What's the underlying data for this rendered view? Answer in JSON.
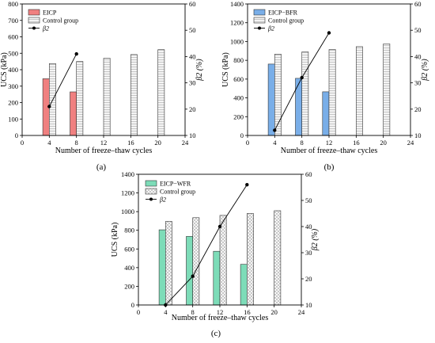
{
  "chart_data": [
    {
      "type": "bar",
      "panel_label": "(a)",
      "xlabel": "Number of freeze–thaw cycles",
      "ylabel": "UCS (kPa)",
      "y2label": "β2 (%)",
      "xlim": [
        0,
        24
      ],
      "ylim": [
        0,
        800
      ],
      "y2lim": [
        10,
        60
      ],
      "xticks": [
        0,
        4,
        8,
        12,
        16,
        20,
        24
      ],
      "yticks": [
        0,
        100,
        200,
        300,
        400,
        500,
        600,
        700,
        800
      ],
      "y2ticks": [
        10,
        20,
        30,
        40,
        50,
        60
      ],
      "bar_series": [
        {
          "name": "EICP",
          "style": "solid",
          "color": "#f08080",
          "x": [
            4,
            8
          ],
          "values": [
            345,
            265
          ]
        },
        {
          "name": "Control group",
          "style": "hlines",
          "color": "#eeeeee",
          "x": [
            4,
            8,
            12,
            16,
            20
          ],
          "values": [
            437,
            450,
            470,
            492,
            522
          ]
        }
      ],
      "line_series": [
        {
          "name": "β2",
          "axis": "right",
          "x": [
            4,
            8
          ],
          "values": [
            21,
            41
          ]
        }
      ],
      "legend_position": "top-left"
    },
    {
      "type": "bar",
      "panel_label": "(b)",
      "xlabel": "Number of freeze–thaw cycles",
      "ylabel": "UCS (kPa)",
      "y2label": "β2 (%)",
      "xlim": [
        0,
        24
      ],
      "ylim": [
        0,
        1400
      ],
      "y2lim": [
        10,
        60
      ],
      "xticks": [
        0,
        4,
        8,
        12,
        16,
        20,
        24
      ],
      "yticks": [
        0,
        200,
        400,
        600,
        800,
        1000,
        1200,
        1400
      ],
      "y2ticks": [
        10,
        20,
        30,
        40,
        50,
        60
      ],
      "bar_series": [
        {
          "name": "EICP−BFR",
          "style": "solid",
          "color": "#79aee8",
          "x": [
            4,
            8,
            12
          ],
          "values": [
            760,
            608,
            465
          ]
        },
        {
          "name": "Control group",
          "style": "hlines",
          "color": "#eeeeee",
          "x": [
            4,
            8,
            12,
            16,
            20
          ],
          "values": [
            865,
            890,
            915,
            945,
            975
          ]
        }
      ],
      "line_series": [
        {
          "name": "β2",
          "axis": "right",
          "x": [
            4,
            8,
            12
          ],
          "values": [
            12,
            32,
            49
          ]
        }
      ],
      "legend_position": "top-left"
    },
    {
      "type": "bar",
      "panel_label": "(c)",
      "xlabel": "Number of freeze–thaw cycles",
      "ylabel": "UCS (kPa)",
      "y2label": "β2 (%)",
      "xlim": [
        0,
        24
      ],
      "ylim": [
        0,
        1400
      ],
      "y2lim": [
        10,
        60
      ],
      "xticks": [
        0,
        4,
        8,
        12,
        16,
        20,
        24
      ],
      "yticks": [
        0,
        200,
        400,
        600,
        800,
        1000,
        1200,
        1400
      ],
      "y2ticks": [
        10,
        20,
        30,
        40,
        50,
        60
      ],
      "bar_series": [
        {
          "name": "EICP−WFR",
          "style": "solid",
          "color": "#7ddcb8",
          "x": [
            4,
            8,
            12,
            16
          ],
          "values": [
            805,
            735,
            575,
            435
          ]
        },
        {
          "name": "Control group",
          "style": "crosshatch",
          "color": "#f2f2f2",
          "x": [
            4,
            8,
            12,
            16,
            20
          ],
          "values": [
            895,
            935,
            960,
            980,
            1010
          ]
        }
      ],
      "line_series": [
        {
          "name": "β2",
          "axis": "right",
          "x": [
            4,
            8,
            12,
            16
          ],
          "values": [
            10,
            21,
            40,
            56
          ]
        }
      ],
      "legend_position": "top-left"
    }
  ]
}
